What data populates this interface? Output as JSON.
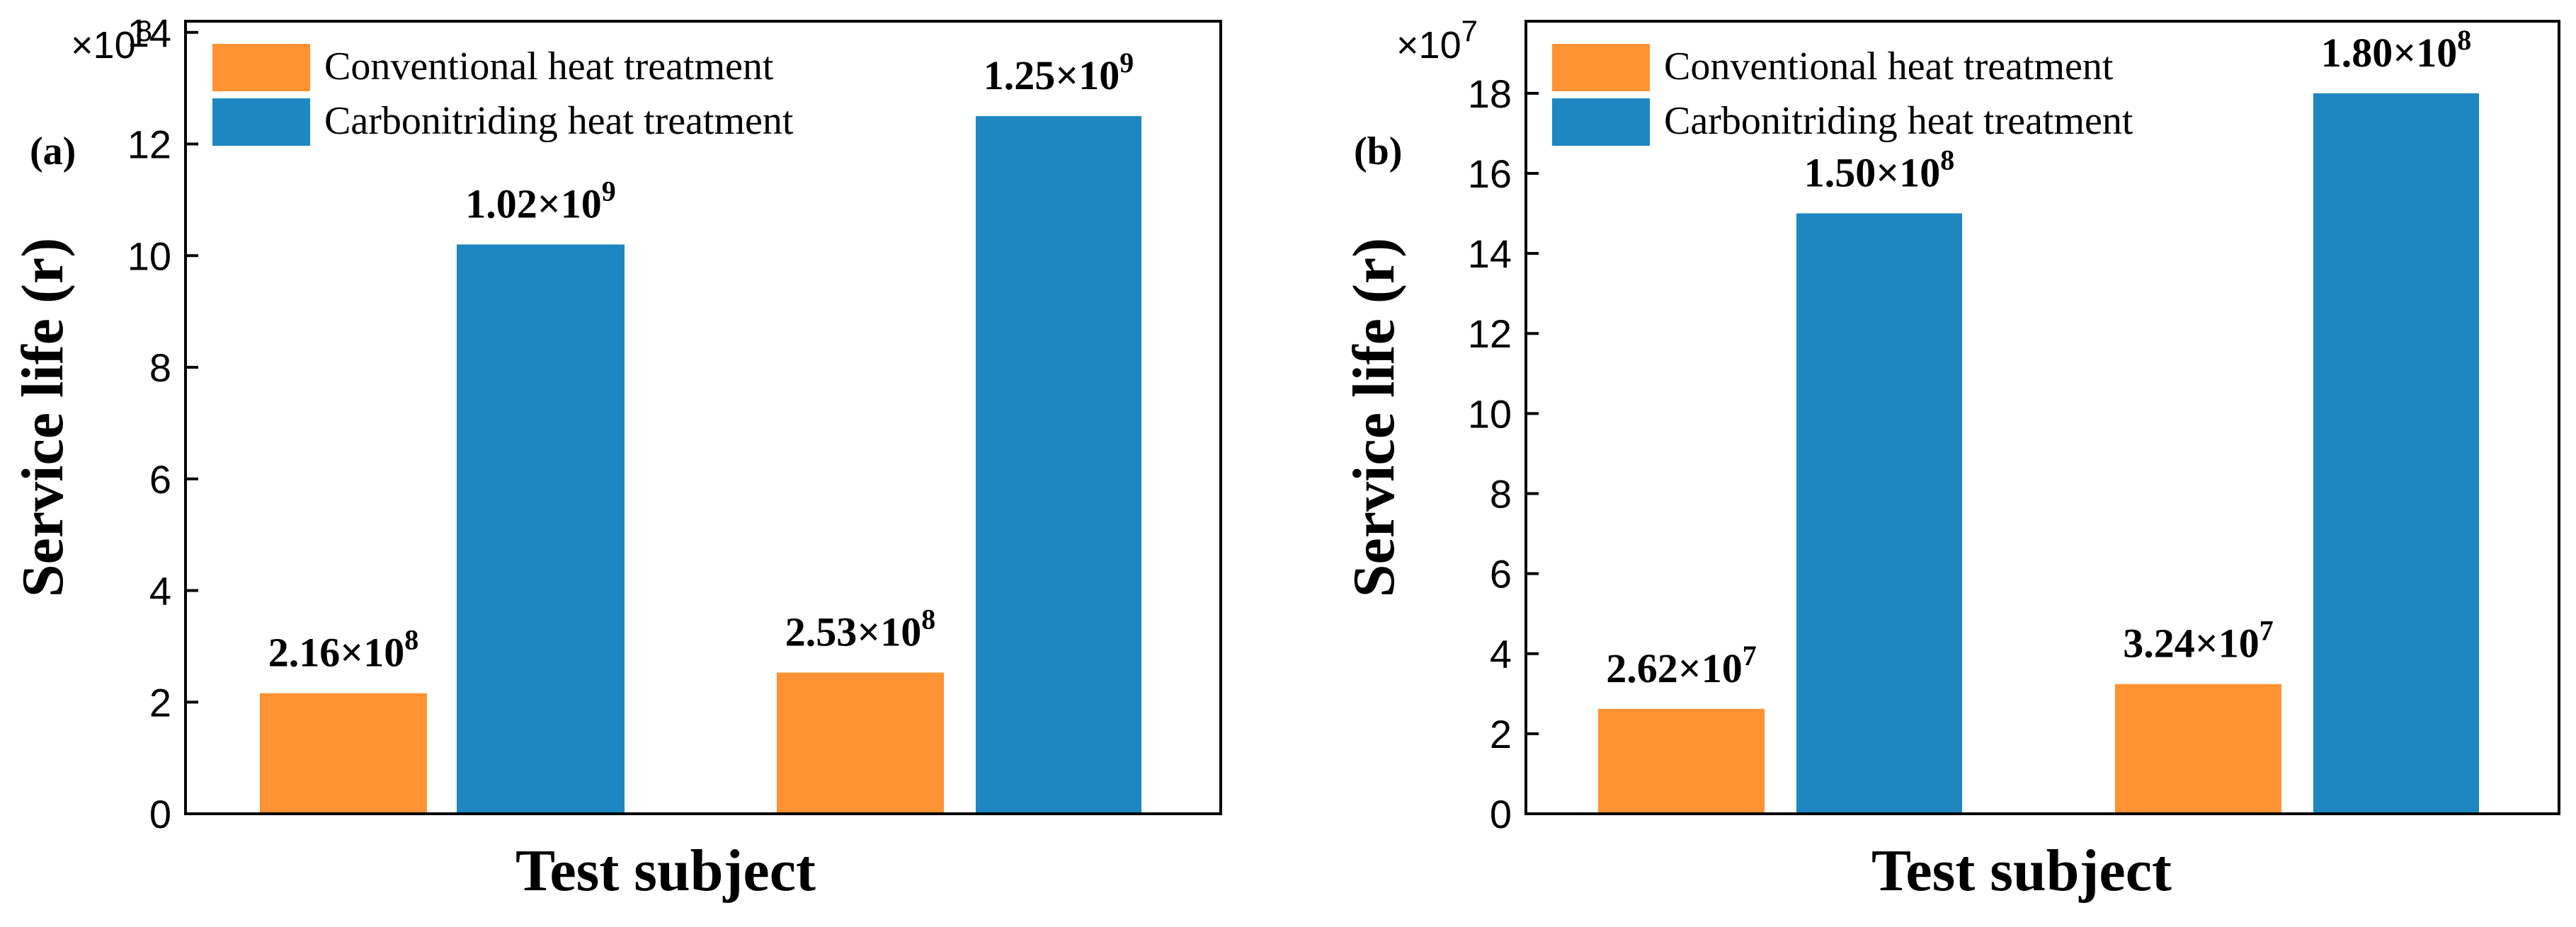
{
  "chart_data": [
    {
      "type": "bar",
      "panel_label": "(a)",
      "title": "",
      "xlabel": "Test subject",
      "ylabel": "Service life (r)",
      "axis_multiplier": {
        "base": "×10",
        "exp": "8"
      },
      "ylim": [
        0,
        14.2
      ],
      "yticks": [
        0,
        2,
        4,
        6,
        8,
        10,
        12,
        14
      ],
      "grid": false,
      "legend_position": "top-left",
      "series": [
        {
          "name": "Conventional heat treatment",
          "color": "#FF9232"
        },
        {
          "name": "Carbonitriding heat treatment",
          "color": "#1E87C2"
        }
      ],
      "bars": [
        {
          "series": 0,
          "value": 2.16,
          "label_base": "2.16×10",
          "label_exp": "8"
        },
        {
          "series": 1,
          "value": 10.2,
          "label_base": "1.02×10",
          "label_exp": "9"
        },
        {
          "series": 0,
          "value": 2.53,
          "label_base": "2.53×10",
          "label_exp": "8"
        },
        {
          "series": 1,
          "value": 12.5,
          "label_base": "1.25×10",
          "label_exp": "9"
        }
      ]
    },
    {
      "type": "bar",
      "panel_label": "(b)",
      "title": "",
      "xlabel": "Test subject",
      "ylabel": "Service life (r)",
      "axis_multiplier": {
        "base": "×10",
        "exp": "7"
      },
      "ylim": [
        0,
        19.8
      ],
      "yticks": [
        0,
        2,
        4,
        6,
        8,
        10,
        12,
        14,
        16,
        18
      ],
      "grid": false,
      "legend_position": "top-left",
      "series": [
        {
          "name": "Conventional heat treatment",
          "color": "#FF9232"
        },
        {
          "name": "Carbonitriding heat treatment",
          "color": "#1E87C2"
        }
      ],
      "bars": [
        {
          "series": 0,
          "value": 2.62,
          "label_base": "2.62×10",
          "label_exp": "7"
        },
        {
          "series": 1,
          "value": 15.0,
          "label_base": "1.50×10",
          "label_exp": "8"
        },
        {
          "series": 0,
          "value": 3.24,
          "label_base": "3.24×10",
          "label_exp": "7"
        },
        {
          "series": 1,
          "value": 18.0,
          "label_base": "1.80×10",
          "label_exp": "8"
        }
      ]
    }
  ]
}
